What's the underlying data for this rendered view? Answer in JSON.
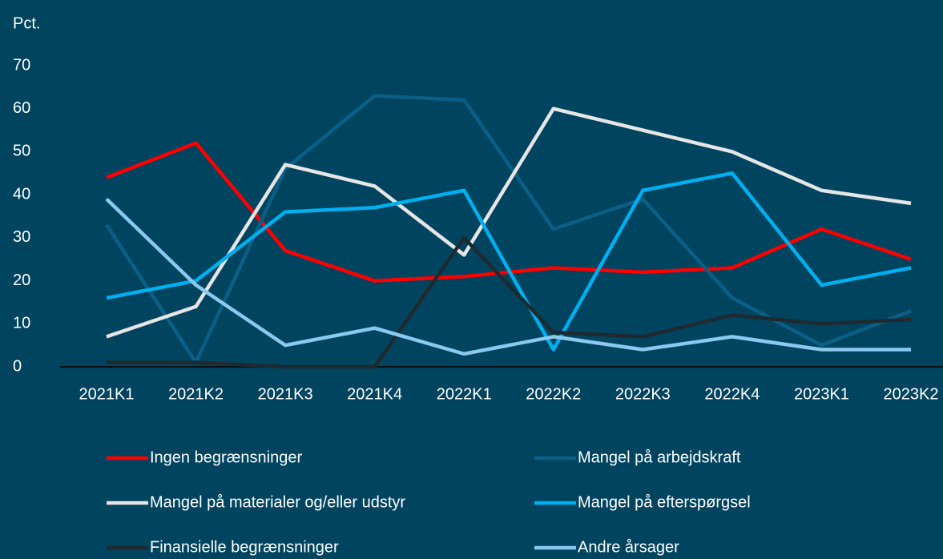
{
  "chart_data": {
    "type": "line",
    "y_label": "Pct.",
    "categories": [
      "2021K1",
      "2021K2",
      "2021K3",
      "2021K4",
      "2022K1",
      "2022K2",
      "2022K3",
      "2022K4",
      "2023K1",
      "2023K2"
    ],
    "series": [
      {
        "name": "Ingen begrænsninger",
        "color": "#ff0000",
        "values": [
          44,
          52,
          27,
          20,
          21,
          23,
          22,
          23,
          32,
          25
        ]
      },
      {
        "name": "Mangel på arbejdskraft",
        "color": "#0b5f86",
        "values": [
          33,
          1,
          46,
          63,
          62,
          32,
          39,
          16,
          5,
          13
        ]
      },
      {
        "name": "Mangel på materialer og/eller udstyr",
        "color": "#e6e6e6",
        "values": [
          7,
          14,
          47,
          42,
          26,
          60,
          55,
          50,
          41,
          38
        ]
      },
      {
        "name": "Mangel på efterspørgsel",
        "color": "#00b0f0",
        "values": [
          16,
          20,
          36,
          37,
          41,
          4,
          41,
          45,
          19,
          23
        ]
      },
      {
        "name": "Finansielle begrænsninger",
        "color": "#1e2a30",
        "values": [
          1,
          1,
          0,
          0,
          30,
          8,
          7,
          12,
          10,
          11
        ]
      },
      {
        "name": "Andre årsager",
        "color": "#8cc8ef",
        "values": [
          39,
          19,
          5,
          9,
          3,
          7,
          4,
          7,
          4,
          4
        ]
      }
    ],
    "ylim": [
      0,
      70
    ],
    "yticks": [
      0,
      10,
      20,
      30,
      40,
      50,
      60,
      70
    ],
    "grid": false,
    "legend": "bottom"
  }
}
